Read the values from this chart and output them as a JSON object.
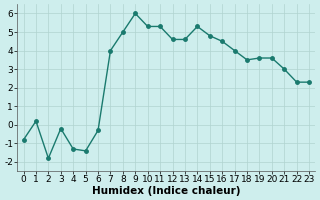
{
  "x": [
    0,
    1,
    2,
    3,
    4,
    5,
    6,
    7,
    8,
    9,
    10,
    11,
    12,
    13,
    14,
    15,
    16,
    17,
    18,
    19,
    20,
    21,
    22,
    23
  ],
  "y": [
    -0.8,
    0.2,
    -1.8,
    -0.2,
    -1.3,
    -1.4,
    -0.3,
    4.0,
    5.0,
    6.0,
    5.3,
    5.3,
    4.6,
    4.6,
    5.3,
    4.8,
    4.5,
    4.0,
    3.5,
    3.6,
    3.6,
    3.0,
    2.3,
    2.3
  ],
  "line_color": "#1a7a6e",
  "marker": "o",
  "markersize": 2.5,
  "linewidth": 1.0,
  "xlabel": "Humidex (Indice chaleur)",
  "xlim": [
    -0.5,
    23.5
  ],
  "ylim": [
    -2.5,
    6.5
  ],
  "yticks": [
    -2,
    -1,
    0,
    1,
    2,
    3,
    4,
    5,
    6
  ],
  "xticks": [
    0,
    1,
    2,
    3,
    4,
    5,
    6,
    7,
    8,
    9,
    10,
    11,
    12,
    13,
    14,
    15,
    16,
    17,
    18,
    19,
    20,
    21,
    22,
    23
  ],
  "bg_color": "#ceeeed",
  "grid_color": "#b0d4d0",
  "xlabel_fontsize": 7.5,
  "tick_fontsize": 6.5
}
